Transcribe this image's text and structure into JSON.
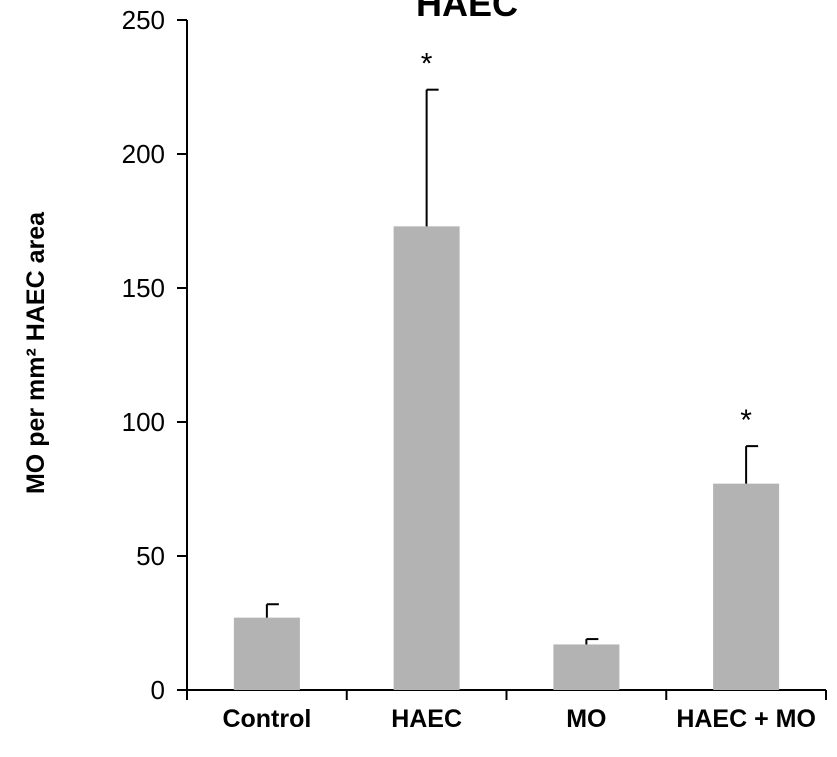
{
  "chart_data": {
    "type": "bar",
    "title": "HAEC",
    "xlabel": "",
    "ylabel": "MO per mm² HAEC area",
    "categories": [
      "Control",
      "HAEC",
      "MO",
      "HAEC + MO"
    ],
    "values": [
      27,
      173,
      17,
      77
    ],
    "error_upper": [
      32,
      224,
      19,
      91
    ],
    "significance": [
      "",
      "*",
      "",
      "*"
    ],
    "ylim": [
      0,
      250
    ],
    "yticks": [
      0,
      50,
      100,
      150,
      200,
      250
    ],
    "grid": false,
    "legend": "none",
    "bar_color": "#b3b3b3",
    "axis_color": "#000000"
  }
}
